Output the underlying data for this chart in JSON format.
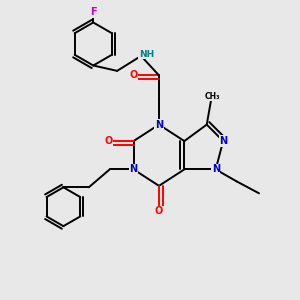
{
  "bg_color": "#e8e8e8",
  "fig_size": [
    3.0,
    3.0
  ],
  "dpi": 100,
  "atom_colors": {
    "C": "#000000",
    "N": "#0000cd",
    "O": "#ff0000",
    "F": "#cc00cc",
    "H": "#008080"
  },
  "bond_color": "#000000",
  "bond_width": 1.4,
  "font_size_atom": 7.0
}
